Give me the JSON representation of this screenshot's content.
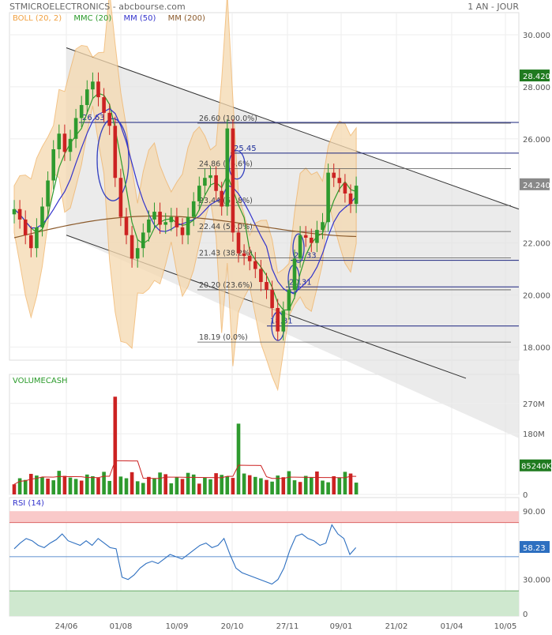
{
  "header": {
    "title": "STMICROELECTRONICS - abcbourse.com",
    "period": "1 AN - JOUR"
  },
  "legend": [
    {
      "label": "BOLL (20, 2)",
      "color": "#f0a040"
    },
    {
      "label": "MMC (20)",
      "color": "#2a9a2a"
    },
    {
      "label": "MM (50)",
      "color": "#3333cc"
    },
    {
      "label": "MM (200)",
      "color": "#8b5a2b"
    }
  ],
  "colors": {
    "up": "#2e9a2e",
    "down": "#cc2222",
    "boll_fill": "#f5d9b0",
    "boll_line": "#f0b060",
    "channel": "#e3e3e3",
    "fib_line": "#1a237e",
    "rsi": "#2d6fc0",
    "rsi_over": "#f9c9c9",
    "rsi_under": "#cfe8cf"
  },
  "chart_data": [
    {
      "type": "line",
      "name": "price",
      "x_ticks": [
        "24/06",
        "01/08",
        "10/09",
        "20/10",
        "27/11",
        "09/01",
        "21/02",
        "01/04",
        "10/05"
      ],
      "y_ticks": [
        "30.000",
        "28.000",
        "26.000",
        "22.000",
        "20.000",
        "18.000"
      ],
      "ylim": [
        16.5,
        30.5
      ],
      "last_price": "28.420",
      "current_price": "24.240",
      "close_estimate": [
        23.3,
        22.9,
        22.3,
        21.8,
        22.6,
        23.4,
        24.4,
        25.6,
        26.2,
        25.5,
        26.0,
        26.8,
        27.3,
        27.9,
        28.2,
        27.6,
        27.0,
        26.5,
        24.5,
        23.0,
        22.3,
        21.4,
        21.8,
        22.4,
        22.9,
        23.2,
        22.7,
        22.8,
        23.0,
        22.6,
        22.3,
        23.0,
        23.6,
        24.2,
        24.5,
        24.6,
        24.0,
        23.4,
        26.4,
        22.4,
        21.6,
        21.5,
        21.3,
        21.0,
        20.5,
        20.2,
        19.5,
        18.6,
        19.4,
        20.2,
        21.4,
        22.3,
        22.2,
        22.0,
        22.5,
        22.8,
        24.7,
        24.5,
        24.3,
        23.9,
        23.5,
        24.2
      ],
      "fibonacci": [
        {
          "label": "26.60 (100.0%)",
          "value": 26.6
        },
        {
          "label": "24.86 (76.6%)",
          "value": 24.86
        },
        {
          "label": "23.44 (61.8%)",
          "value": 23.44
        },
        {
          "label": "22.44 (50.0%)",
          "value": 22.44
        },
        {
          "label": "21.43 (38.2%)",
          "value": 21.43
        },
        {
          "label": "20.20 (23.6%)",
          "value": 20.2
        },
        {
          "label": "18.19 (0.0%)",
          "value": 18.19
        }
      ],
      "annotations": [
        {
          "label": "26.63",
          "value": 26.63
        },
        {
          "label": "25.45",
          "value": 25.45
        },
        {
          "label": "21.33",
          "value": 21.33
        },
        {
          "label": "20.31",
          "value": 20.31
        },
        {
          "label": "18.81",
          "value": 18.81
        }
      ]
    },
    {
      "type": "bar",
      "name": "VOLUMECASH",
      "title": "VOLUMECASH",
      "y_ticks": [
        "270M",
        "180M",
        "0"
      ],
      "ylim": [
        0,
        300
      ],
      "current_value": "85240K"
    },
    {
      "type": "line",
      "name": "RSI",
      "title": "RSI (14)",
      "y_ticks": [
        "90.00",
        "30.000",
        "0"
      ],
      "ylim": [
        0,
        100
      ],
      "current_value": "58.23",
      "values_estimate": [
        57,
        62,
        66,
        64,
        60,
        58,
        62,
        65,
        70,
        64,
        62,
        60,
        64,
        60,
        66,
        62,
        58,
        57,
        32,
        30,
        34,
        40,
        44,
        46,
        44,
        48,
        52,
        50,
        48,
        52,
        56,
        60,
        62,
        58,
        60,
        66,
        52,
        40,
        36,
        34,
        32,
        30,
        28,
        26,
        30,
        40,
        56,
        68,
        70,
        66,
        64,
        60,
        62,
        78,
        70,
        66,
        52,
        58
      ]
    }
  ]
}
